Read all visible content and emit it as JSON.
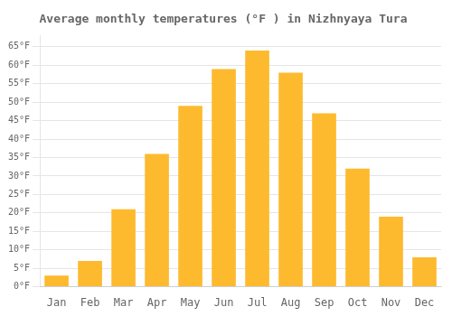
{
  "chart_data": {
    "type": "bar",
    "title": "Average monthly temperatures (°F ) in Nizhnyaya Tura",
    "categories": [
      "Jan",
      "Feb",
      "Mar",
      "Apr",
      "May",
      "Jun",
      "Jul",
      "Aug",
      "Sep",
      "Oct",
      "Nov",
      "Dec"
    ],
    "values": [
      3,
      7,
      21,
      36,
      49,
      59,
      64,
      58,
      47,
      32,
      19,
      8
    ],
    "color": "#FDBA2E",
    "ylim": [
      0,
      68
    ],
    "yticks": [
      {
        "value": 0,
        "label": "0°F"
      },
      {
        "value": 5,
        "label": "5°F"
      },
      {
        "value": 10,
        "label": "10°F"
      },
      {
        "value": 15,
        "label": "15°F"
      },
      {
        "value": 20,
        "label": "20°F"
      },
      {
        "value": 25,
        "label": "25°F"
      },
      {
        "value": 30,
        "label": "30°F"
      },
      {
        "value": 35,
        "label": "35°F"
      },
      {
        "value": 40,
        "label": "40°F"
      },
      {
        "value": 45,
        "label": "45°F"
      },
      {
        "value": 50,
        "label": "50°F"
      },
      {
        "value": 55,
        "label": "55°F"
      },
      {
        "value": 60,
        "label": "60°F"
      },
      {
        "value": 65,
        "label": "65°F"
      }
    ],
    "grid": true
  }
}
